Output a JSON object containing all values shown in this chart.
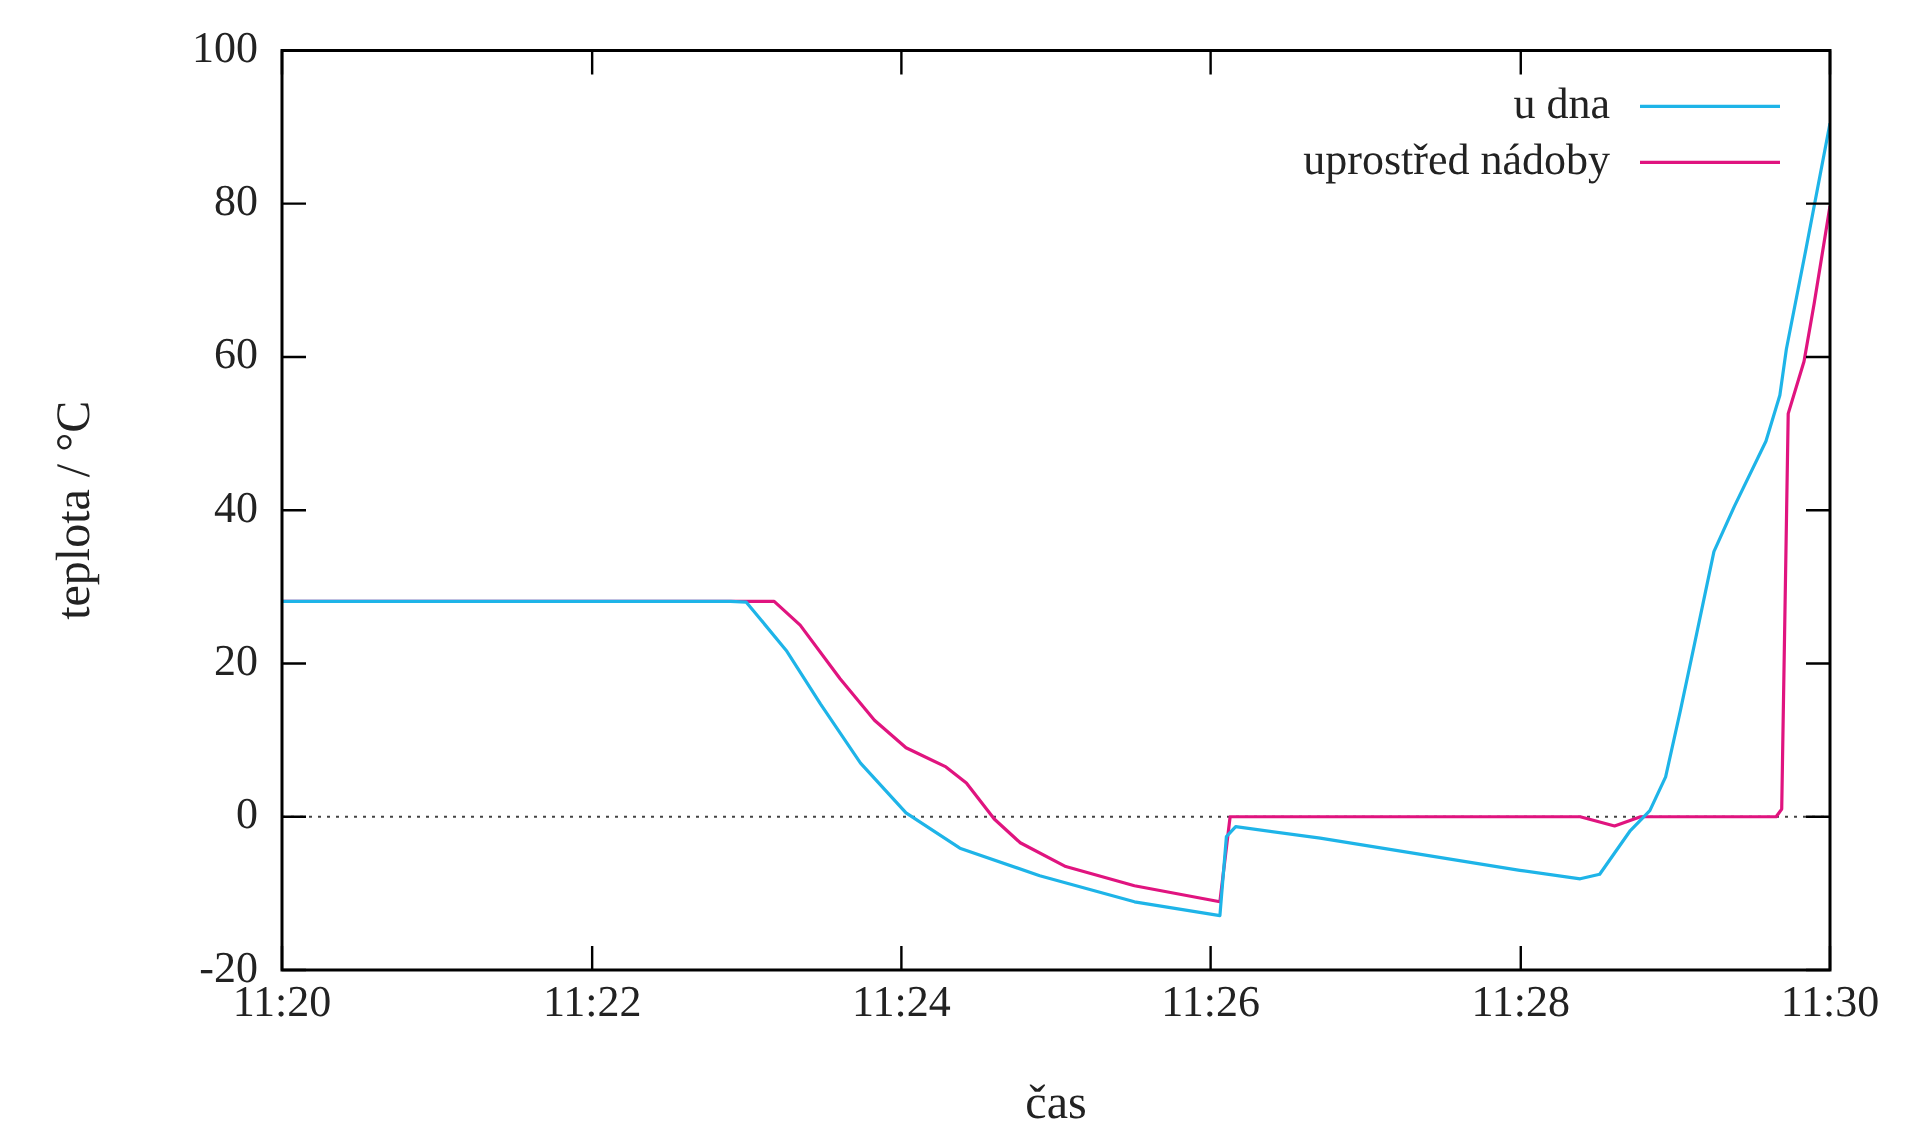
{
  "chart_data": {
    "type": "line",
    "xlabel": "čas",
    "ylabel": "teplota / °C",
    "legend": "top right",
    "xlim": [
      11.3333,
      11.5
    ],
    "ylim": [
      -20,
      100
    ],
    "xticks": [
      {
        "value": 11.3333,
        "label": "11:20"
      },
      {
        "value": 11.3667,
        "label": "11:22"
      },
      {
        "value": 11.4,
        "label": "11:24"
      },
      {
        "value": 11.4333,
        "label": "11:26"
      },
      {
        "value": 11.4667,
        "label": "11:28"
      },
      {
        "value": 11.5,
        "label": "11:30"
      }
    ],
    "yticks": [
      -20,
      0,
      20,
      40,
      60,
      80,
      100
    ],
    "ref_lines": [
      {
        "axis": "y",
        "value": 0,
        "color": "#444444",
        "line_style": "dotted"
      }
    ],
    "series": [
      {
        "name": "u dna",
        "color": "#1eb4e8",
        "x": [
          11.3333,
          11.3816,
          11.3833,
          11.3876,
          11.3913,
          11.3956,
          11.4005,
          11.4063,
          11.4149,
          11.4251,
          11.4343,
          11.435,
          11.436,
          11.4451,
          11.4666,
          11.4731,
          11.4752,
          11.4785,
          11.4806,
          11.4823,
          11.4839,
          11.4854,
          11.4875,
          11.4897,
          11.4931,
          11.4946,
          11.4953,
          11.4974,
          11.5
        ],
        "values": [
          28.1,
          28.1,
          28,
          21.7,
          14.7,
          7,
          0.5,
          -4.1,
          -7.7,
          -11.1,
          -12.9,
          -2.6,
          -1.3,
          -2.8,
          -7,
          -8.1,
          -7.5,
          -1.8,
          0.8,
          5.2,
          13.9,
          22.5,
          34.6,
          40.5,
          49,
          55,
          61,
          74,
          90.5
        ]
      },
      {
        "name": "uprostřed nádoby",
        "color": "#e0147f",
        "x": [
          11.3333,
          11.3863,
          11.3891,
          11.3934,
          11.3971,
          11.4005,
          11.4048,
          11.407,
          11.41,
          11.4128,
          11.4177,
          11.4251,
          11.4343,
          11.4354,
          11.4731,
          11.4768,
          11.4796,
          11.4942,
          11.4948,
          11.4955,
          11.4972,
          11.4983,
          11.5
        ],
        "values": [
          28.1,
          28.1,
          25,
          18,
          12.6,
          9,
          6.5,
          4.4,
          -0.3,
          -3.4,
          -6.5,
          -9,
          -11.1,
          0,
          0,
          -1.2,
          0,
          0,
          1,
          52.6,
          59.4,
          67,
          79.7
        ]
      }
    ]
  }
}
